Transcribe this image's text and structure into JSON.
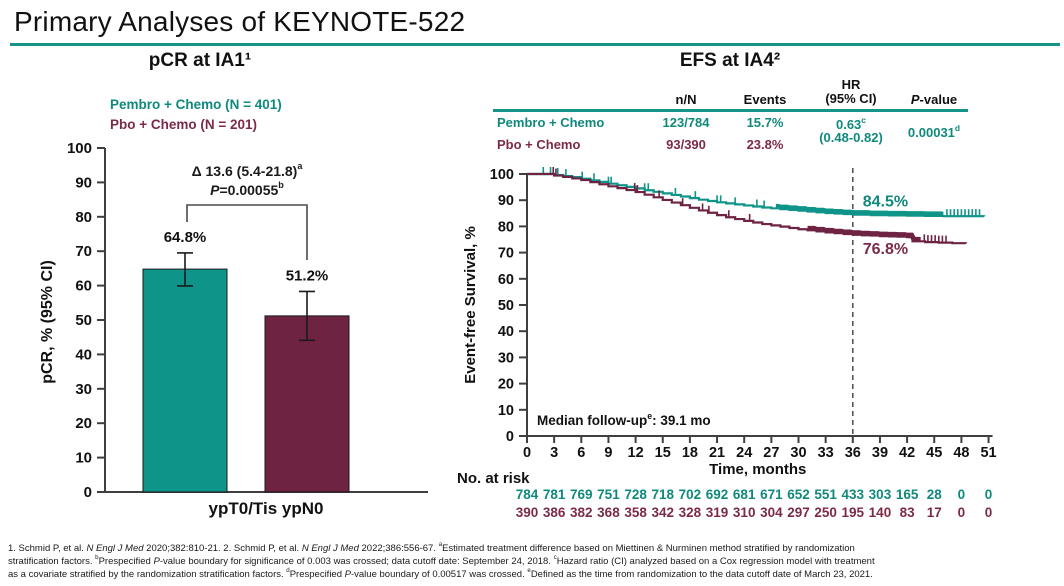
{
  "slide": {
    "title": "Primary Analyses of KEYNOTE-522"
  },
  "colors": {
    "teal": "#0E9488",
    "teal_text": "#0F897C",
    "maroon": "#6E2343",
    "maroon_text": "#7C2A4A",
    "rule": "#17948A",
    "axis": "#3f3f3f",
    "text": "#111111"
  },
  "efs_table": {
    "headers": {
      "n": "n/N",
      "events": "Events",
      "hr1": "HR",
      "hr2": "(95% CI)",
      "p": [
        {
          "t": "P",
          "i": true
        },
        {
          "t": "-value"
        }
      ]
    },
    "rows": [
      {
        "label": "Pembro + Chemo",
        "n": "123/784",
        "events": "15.7%"
      },
      {
        "label": "Pbo + Chemo",
        "n": "93/390",
        "events": "23.8%"
      }
    ],
    "hr_value": [
      {
        "t": "0.63"
      },
      {
        "t": "c",
        "sup": true
      }
    ],
    "hr_ci": "(0.48-0.82)",
    "p_value": [
      {
        "t": "0.00031"
      },
      {
        "t": "d",
        "sup": true
      }
    ]
  },
  "footnotes": {
    "lines": [
      [
        {
          "t": "1. Schmid P, et al. "
        },
        {
          "t": "N Engl J Med",
          "i": true
        },
        {
          "t": " 2020;382:810-21. 2. Schmid P, et al. "
        },
        {
          "t": "N Engl J Med",
          "i": true
        },
        {
          "t": " 2022;386:556-67. "
        },
        {
          "t": "a",
          "sup": true
        },
        {
          "t": "Estimated treatment difference based on Miettinen & Nurminen method stratified by randomization"
        }
      ],
      [
        {
          "t": "stratification factors. "
        },
        {
          "t": "b",
          "sup": true
        },
        {
          "t": "Prespecified "
        },
        {
          "t": "P",
          "i": true
        },
        {
          "t": "-value boundary for significance of 0.003 was crossed; data cutoff date: September 24, 2018. "
        },
        {
          "t": "c",
          "sup": true
        },
        {
          "t": "Hazard ratio (CI) analyzed based on a Cox regression model with treatment"
        }
      ],
      [
        {
          "t": "as a covariate stratified by the randomization stratification factors. "
        },
        {
          "t": "d",
          "sup": true
        },
        {
          "t": "Prespecified "
        },
        {
          "t": "P",
          "i": true
        },
        {
          "t": "-value boundary of 0.00517 was crossed. "
        },
        {
          "t": "e",
          "sup": true
        },
        {
          "t": "Defined as the time from randomization to the data cutoff date of March 23, 2021."
        }
      ]
    ]
  },
  "chart_data": [
    {
      "type": "bar",
      "title": "pCR at IA1¹",
      "ylabel": "pCR, % (95% CI)",
      "categories": [
        "ypT0/Tis ypN0"
      ],
      "ylim": [
        0,
        100
      ],
      "ytick_step": 10,
      "legend": [
        "Pembro + Chemo (N = 401)",
        "Pbo + Chemo (N = 201)"
      ],
      "series": [
        {
          "name": "Pembro + Chemo",
          "value": 64.8,
          "value_label": "64.8%",
          "ci": [
            59.9,
            69.5
          ],
          "color_key": "teal"
        },
        {
          "name": "Pbo + Chemo",
          "value": 51.2,
          "value_label": "51.2%",
          "ci": [
            44.1,
            58.3
          ],
          "color_key": "maroon"
        }
      ],
      "annotation": {
        "delta": [
          {
            "t": "Δ 13.6 (5.4-21.8)"
          },
          {
            "t": "a",
            "sup": true
          }
        ],
        "p": [
          {
            "t": "P",
            "i": true
          },
          {
            "t": "=0.00055"
          },
          {
            "t": "b",
            "sup": true
          }
        ]
      }
    },
    {
      "type": "line",
      "title": "EFS at IA4²",
      "ylabel": "Event-free Survival, %",
      "xlabel": "Time, months",
      "xlim": [
        0,
        51
      ],
      "xtick_step": 3,
      "ylim": [
        0,
        100
      ],
      "ytick_step": 10,
      "reference_line_month": 36,
      "median_followup": [
        {
          "t": "Median follow-up"
        },
        {
          "t": "e",
          "sup": true
        },
        {
          "t": ": 39.1 mo"
        }
      ],
      "series": [
        {
          "name": "Pembro + Chemo",
          "color_key": "teal",
          "text_color_key": "teal_text",
          "landmark_label": "84.5%",
          "landmark_pos": {
            "month": 37.1,
            "pct": 87.6
          },
          "points": [
            [
              0,
              100
            ],
            [
              2.5,
              100
            ],
            [
              3,
              99.6
            ],
            [
              4,
              99.2
            ],
            [
              5,
              98.8
            ],
            [
              6,
              98.2
            ],
            [
              7,
              97.6
            ],
            [
              8,
              97
            ],
            [
              9,
              96.3
            ],
            [
              10,
              95.7
            ],
            [
              11,
              95.1
            ],
            [
              12,
              94.5
            ],
            [
              13,
              93.8
            ],
            [
              14,
              93.2
            ],
            [
              15,
              92.6
            ],
            [
              16,
              92
            ],
            [
              17,
              91.4
            ],
            [
              18,
              90.8
            ],
            [
              19,
              90.2
            ],
            [
              20,
              89.7
            ],
            [
              21,
              89.2
            ],
            [
              22,
              88.8
            ],
            [
              23,
              88.4
            ],
            [
              24,
              88
            ],
            [
              25,
              87.6
            ],
            [
              26,
              87.2
            ],
            [
              27,
              86.9
            ],
            [
              28,
              86.6
            ],
            [
              29,
              86.3
            ],
            [
              30,
              86
            ],
            [
              31,
              85.7
            ],
            [
              32,
              85.4
            ],
            [
              33,
              85.1
            ],
            [
              34,
              84.9
            ],
            [
              35,
              84.7
            ],
            [
              36,
              84.5
            ],
            [
              38,
              84.3
            ],
            [
              40,
              84.2
            ],
            [
              42,
              84.1
            ],
            [
              44,
              84
            ],
            [
              46,
              83.9
            ],
            [
              48,
              83.9
            ],
            [
              50.5,
              83.8
            ]
          ],
          "censor_marks": [
            1.8,
            2.6,
            3.4,
            4.3,
            6.1,
            7.4,
            9,
            9.3,
            13,
            13.4,
            16.4,
            18.6,
            21,
            21.4,
            23,
            25.4,
            26.2,
            46.4,
            46.8,
            47.2,
            47.6,
            48,
            48.4,
            48.8,
            49.2,
            49.6,
            50
          ],
          "censor_band": [
            27.5,
            46
          ]
        },
        {
          "name": "Pbo + Chemo",
          "color_key": "maroon",
          "text_color_key": "maroon_text",
          "landmark_label": "76.8%",
          "landmark_pos": {
            "month": 37.1,
            "pct": 69.5
          },
          "points": [
            [
              0,
              100
            ],
            [
              2.5,
              100
            ],
            [
              3,
              99.4
            ],
            [
              4,
              98.9
            ],
            [
              5,
              98.3
            ],
            [
              6,
              97.7
            ],
            [
              7,
              96.9
            ],
            [
              8,
              96.1
            ],
            [
              9,
              95.3
            ],
            [
              10,
              94.6
            ],
            [
              11,
              93.9
            ],
            [
              12,
              93.1
            ],
            [
              13,
              92.1
            ],
            [
              14,
              91.1
            ],
            [
              15,
              90.1
            ],
            [
              16,
              89.1
            ],
            [
              17,
              88.1
            ],
            [
              18,
              87.1
            ],
            [
              19,
              86.1
            ],
            [
              20,
              85.2
            ],
            [
              21,
              84.3
            ],
            [
              22,
              83.5
            ],
            [
              23,
              82.8
            ],
            [
              24,
              82.1
            ],
            [
              25,
              81.5
            ],
            [
              26,
              80.9
            ],
            [
              27,
              80.4
            ],
            [
              28,
              79.9
            ],
            [
              29,
              79.4
            ],
            [
              30,
              78.9
            ],
            [
              31,
              78.5
            ],
            [
              32,
              78.1
            ],
            [
              33,
              77.7
            ],
            [
              34,
              77.4
            ],
            [
              35,
              77.1
            ],
            [
              36,
              76.8
            ],
            [
              37,
              76.6
            ],
            [
              38,
              76.5
            ],
            [
              39,
              76.3
            ],
            [
              40,
              76.2
            ],
            [
              41,
              76.1
            ],
            [
              42,
              75.9
            ],
            [
              42.6,
              74.3
            ],
            [
              44,
              74
            ],
            [
              45.5,
              73.8
            ],
            [
              47,
              73.6
            ],
            [
              48.5,
              73.5
            ]
          ],
          "censor_marks": [
            2.9,
            3.2,
            11.9,
            12.2,
            14.6,
            17.2,
            19.4,
            20.1,
            22.3,
            24.6,
            43.9,
            44.3,
            44.7,
            45.1,
            45.5,
            45.9,
            46.3
          ],
          "censor_band": [
            31,
            43.5
          ]
        }
      ],
      "no_at_risk": {
        "label": "No. at risk",
        "rows": [
          {
            "color_key": "teal_text",
            "values": [
              "784",
              "781",
              "769",
              "751",
              "728",
              "718",
              "702",
              "692",
              "681",
              "671",
              "652",
              "551",
              "433",
              "303",
              "165",
              "28",
              "0",
              "0"
            ]
          },
          {
            "color_key": "maroon_text",
            "values": [
              "390",
              "386",
              "382",
              "368",
              "358",
              "342",
              "328",
              "319",
              "310",
              "304",
              "297",
              "250",
              "195",
              "140",
              "83",
              "17",
              "0",
              "0"
            ]
          }
        ]
      }
    }
  ]
}
